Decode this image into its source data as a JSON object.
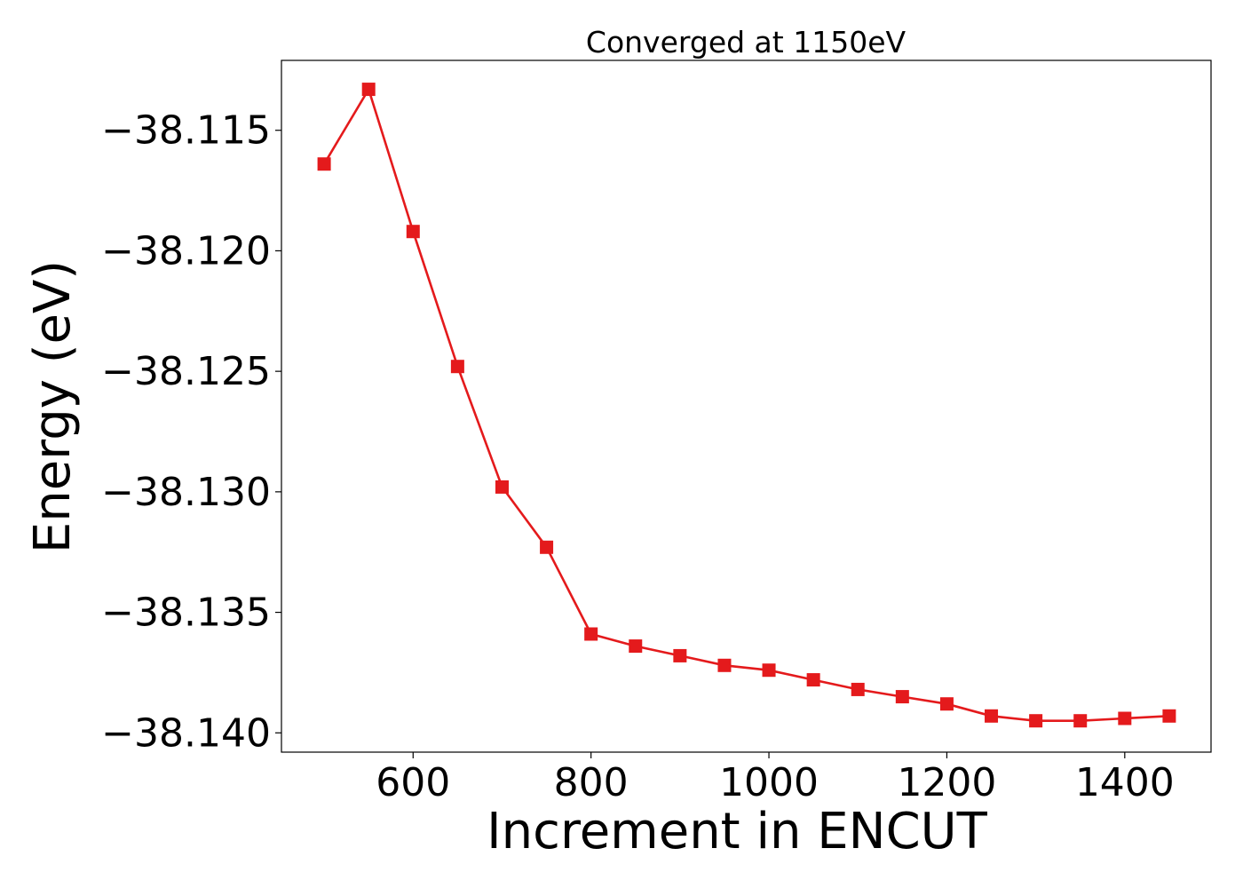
{
  "chart_data": {
    "type": "line",
    "title": "Converged at 1150eV",
    "xlabel": "Increment in ENCUT",
    "ylabel": "Energy (eV)",
    "x_ticks": [
      600,
      800,
      1000,
      1200,
      1400
    ],
    "x_tick_labels": [
      "600",
      "800",
      "1000",
      "1200",
      "1400"
    ],
    "y_ticks": [
      -38.115,
      -38.12,
      -38.125,
      -38.13,
      -38.135,
      -38.14
    ],
    "y_tick_labels": [
      "−38.115",
      "−38.120",
      "−38.125",
      "−38.130",
      "−38.135",
      "−38.140"
    ],
    "xlim": [
      452,
      1497
    ],
    "ylim": [
      -38.1408,
      -38.1121
    ],
    "grid": false,
    "legend": "none",
    "color": "#e41a1c",
    "marker": "square",
    "x": [
      500,
      550,
      600,
      650,
      700,
      750,
      800,
      850,
      900,
      950,
      1000,
      1050,
      1100,
      1150,
      1200,
      1250,
      1300,
      1350,
      1400,
      1450
    ],
    "y": [
      -38.1164,
      -38.1133,
      -38.1192,
      -38.1248,
      -38.1298,
      -38.1323,
      -38.1359,
      -38.1364,
      -38.1368,
      -38.1372,
      -38.1374,
      -38.1378,
      -38.1382,
      -38.1385,
      -38.1388,
      -38.1393,
      -38.1395,
      -38.1395,
      -38.1394,
      -38.1393
    ]
  }
}
